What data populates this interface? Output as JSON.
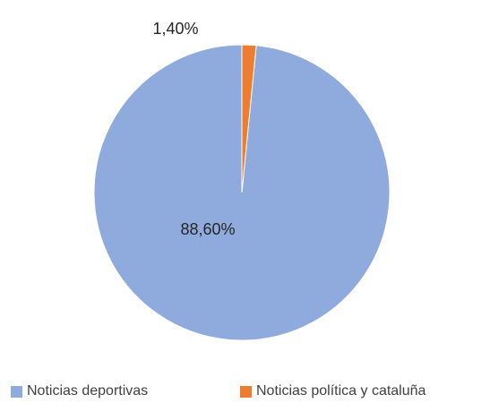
{
  "chart_data": {
    "type": "pie",
    "title": "",
    "slices": [
      {
        "label": "Noticias deportivas",
        "value": 88.6,
        "value_label": "88,60%",
        "color": "#8faadc"
      },
      {
        "label": "Noticias política y cataluña",
        "value": 1.4,
        "value_label": "1,40%",
        "color": "#ed7d31"
      }
    ],
    "start_angle_deg": 0,
    "direction": "counterclockwise",
    "legend_position": "bottom"
  }
}
